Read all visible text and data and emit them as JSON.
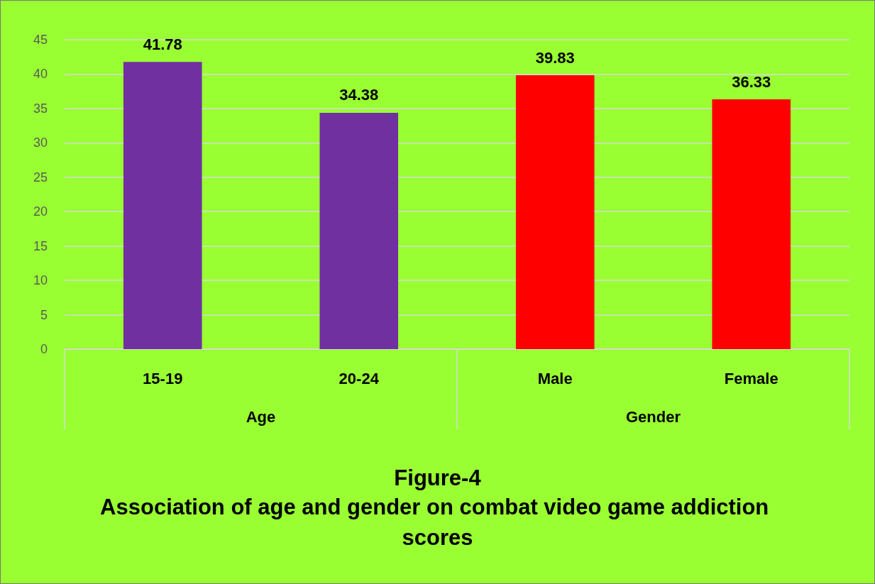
{
  "chart_data": {
    "type": "bar",
    "title": "Figure-4",
    "subtitle": "Association of age and gender on combat video game addiction scores",
    "categories": [
      "15-19",
      "20-24",
      "Male",
      "Female"
    ],
    "values": [
      41.78,
      34.38,
      39.83,
      36.33
    ],
    "colors": [
      "#7030a0",
      "#7030a0",
      "#ff0000",
      "#ff0000"
    ],
    "annotations": [
      "Age",
      "Gender"
    ],
    "ylim": [
      0,
      45
    ],
    "yticks": [
      0,
      5,
      10,
      15,
      20,
      25,
      30,
      35,
      40,
      45
    ],
    "grid": "y",
    "data_labels": true
  }
}
